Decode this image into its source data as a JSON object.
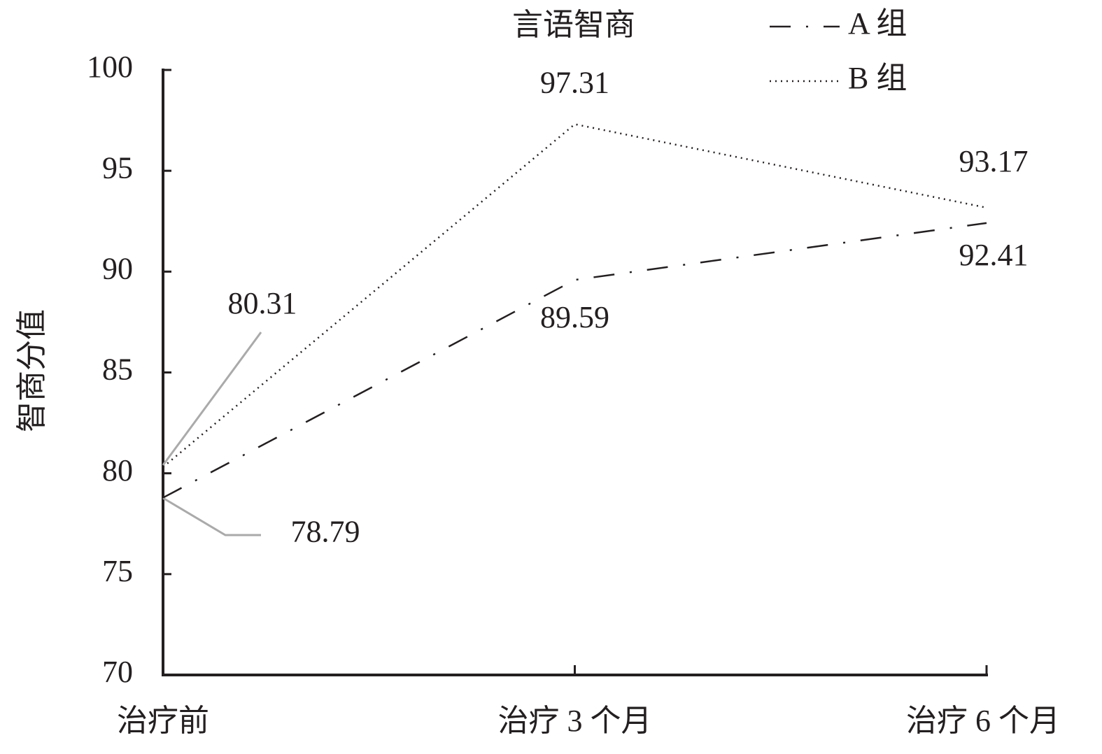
{
  "chart_data": {
    "type": "line",
    "title": "言语智商",
    "y_label": "智商分值",
    "categories": [
      "治疗前",
      "治疗 3 个月",
      "治疗 6 个月"
    ],
    "series": [
      {
        "name": "A 组",
        "color": "#231f20",
        "line_style": "dash-dot",
        "values": [
          78.79,
          89.59,
          92.41
        ]
      },
      {
        "name": "B 组",
        "color": "#231f20",
        "line_style": "dotted",
        "values": [
          80.31,
          97.31,
          93.17
        ]
      }
    ],
    "ylim": [
      70,
      100
    ],
    "yticks": [
      70,
      75,
      80,
      85,
      90,
      95,
      100
    ],
    "legend": "top-right"
  }
}
